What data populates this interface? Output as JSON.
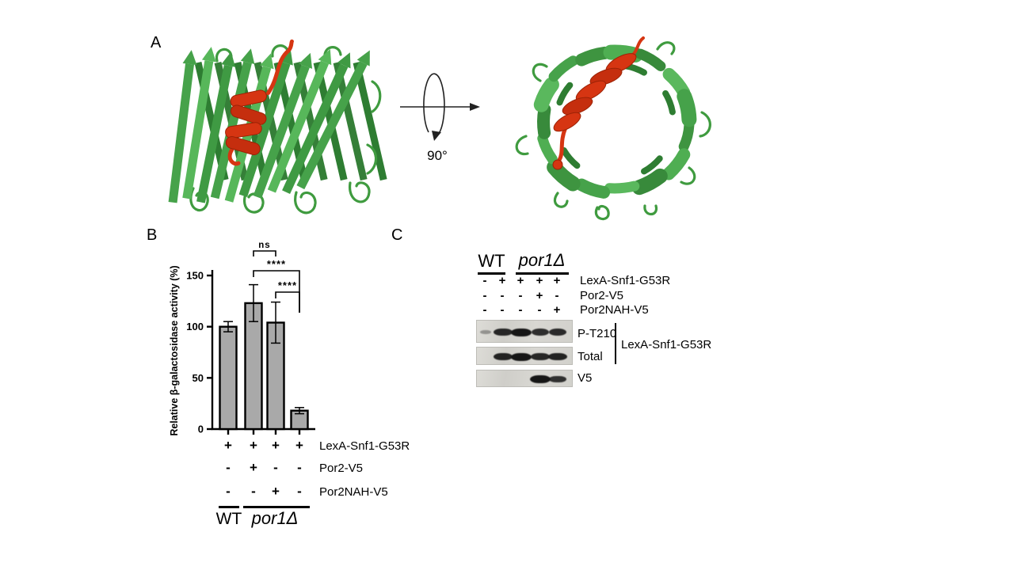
{
  "panelA": {
    "label": "A",
    "rotation_label": "90°",
    "colors": {
      "ribbon_green": "#46a24a",
      "ribbon_green_light": "#57b75a",
      "ribbon_green_dark": "#2e7d32",
      "loop_green": "#3f9b3f",
      "helix_red": "#d63512",
      "helix_red_dark": "#9c2205"
    }
  },
  "panelB": {
    "label": "B"
  },
  "chart_data": {
    "type": "bar",
    "title": "",
    "xlabel": "",
    "ylabel": "Relative β-galactosidase activity (%)",
    "ylim": [
      0,
      150
    ],
    "yticks": [
      0,
      50,
      100,
      150
    ],
    "grid": false,
    "bar_color": "#a9a9a9",
    "values": [
      100,
      123,
      104,
      18
    ],
    "errors": [
      5,
      18,
      20,
      3
    ],
    "significance": [
      {
        "from": 1,
        "to": 2,
        "label": "ns"
      },
      {
        "from": 1,
        "to": 3,
        "label": "****"
      },
      {
        "from": 2,
        "to": 3,
        "label": "****"
      }
    ],
    "condition_rows": [
      {
        "label": "LexA-Snf1-G53R",
        "values": [
          "+",
          "+",
          "+",
          "+"
        ]
      },
      {
        "label": "Por2-V5",
        "values": [
          "-",
          "+",
          "-",
          "-"
        ]
      },
      {
        "label": "Por2NAH-V5",
        "values": [
          "-",
          "-",
          "+",
          "-"
        ]
      }
    ],
    "group_labels": [
      {
        "label": "WT",
        "italic": false
      },
      {
        "label": "por1Δ",
        "italic": true
      }
    ]
  },
  "panelC": {
    "label": "C",
    "groups": [
      {
        "label": "WT",
        "italic": false
      },
      {
        "label": "por1Δ",
        "italic": true
      }
    ],
    "condition_rows": [
      {
        "label": "LexA-Snf1-G53R",
        "values": [
          "-",
          "+",
          "+",
          "+",
          "+"
        ]
      },
      {
        "label": "Por2-V5",
        "values": [
          "-",
          "-",
          "-",
          "+",
          "-"
        ]
      },
      {
        "label": "Por2NAH-V5",
        "values": [
          "-",
          "-",
          "-",
          "-",
          "+"
        ]
      }
    ],
    "blots": [
      {
        "label": "P-T210",
        "bands": [
          0.12,
          0.8,
          1,
          0.72,
          0.75
        ]
      },
      {
        "label": "Total",
        "bands": [
          0,
          0.85,
          1,
          0.8,
          0.85
        ]
      },
      {
        "label": "V5",
        "bands": [
          0,
          0,
          0,
          1,
          0.7
        ]
      }
    ],
    "bracket_label": "LexA-Snf1-G53R"
  }
}
